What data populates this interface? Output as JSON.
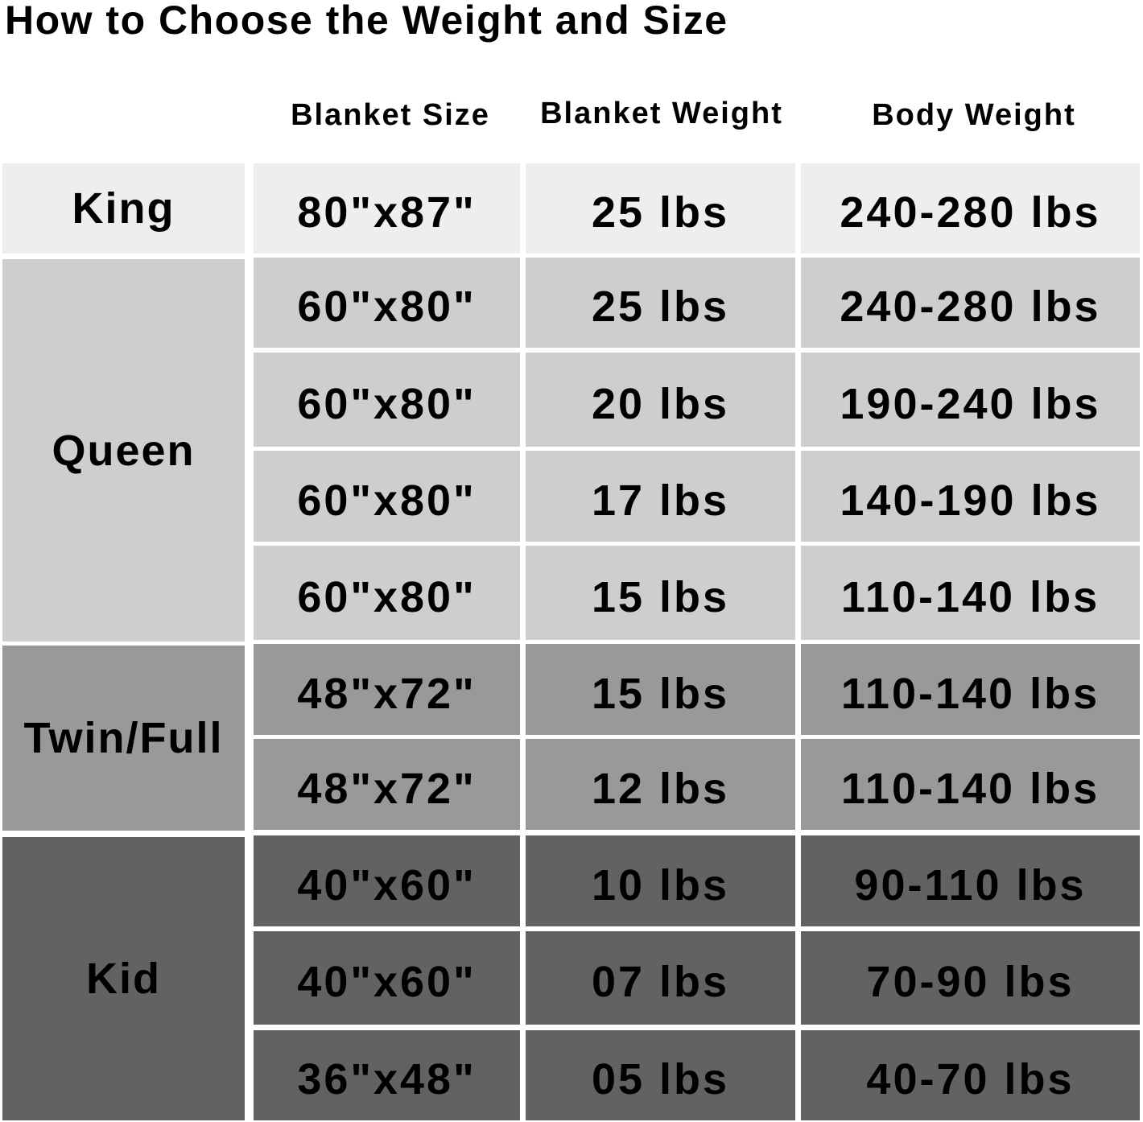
{
  "title": "How to Choose the Weight and Size",
  "headers": [
    "Blanket Size",
    "Blanket Weight",
    "Body Weight"
  ],
  "colors": {
    "King": "#eeeeee",
    "Queen": "#cecece",
    "Twin/Full": "#999999",
    "Kid": "#626262"
  },
  "groups": [
    {
      "label": "King",
      "rows": [
        [
          "80\"x87\"",
          "25 lbs",
          "240-280 lbs"
        ]
      ]
    },
    {
      "label": "Queen",
      "rows": [
        [
          "60\"x80\"",
          "25 lbs",
          "240-280 lbs"
        ],
        [
          "60\"x80\"",
          "20 lbs",
          "190-240 lbs"
        ],
        [
          "60\"x80\"",
          "17 lbs",
          "140-190 lbs"
        ],
        [
          "60\"x80\"",
          "15 lbs",
          "110-140 lbs"
        ]
      ]
    },
    {
      "label": "Twin/Full",
      "rows": [
        [
          "48\"x72\"",
          "15 lbs",
          "110-140 lbs"
        ],
        [
          "48\"x72\"",
          "12 lbs",
          "110-140 lbs"
        ]
      ]
    },
    {
      "label": "Kid",
      "rows": [
        [
          "40\"x60\"",
          "10 lbs",
          "90-110 lbs"
        ],
        [
          "40\"x60\"",
          "07 lbs",
          "70-90 lbs"
        ],
        [
          "36\"x48\"",
          "05 lbs",
          "40-70 lbs"
        ]
      ]
    }
  ]
}
